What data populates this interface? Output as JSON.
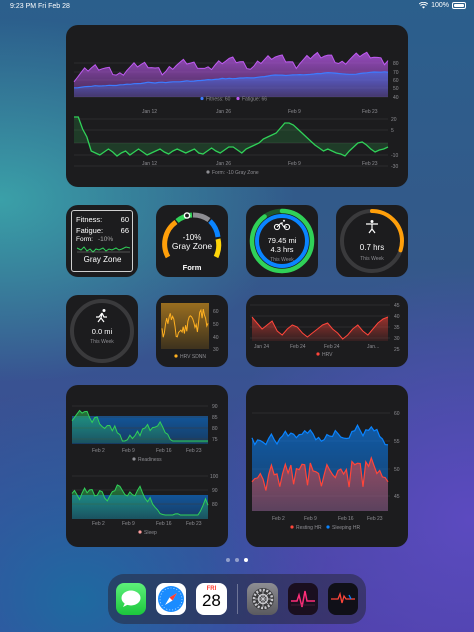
{
  "status": {
    "time": "9:23 PM",
    "date": "Fri Feb 28",
    "battery": "100%"
  },
  "colors": {
    "fitness": "#3d7bff",
    "fatigue": "#bf5af2",
    "form_green": "#30d158",
    "form_orange": "#ff9f0a",
    "hrv_red": "#ff453a",
    "hrv_yellow": "#ffb020",
    "blue": "#0a84ff"
  },
  "top_chart": {
    "fitness_fatigue": {
      "x_ticks": [
        "Jan 12",
        "Jan 26",
        "Feb 9",
        "Feb 23"
      ],
      "y_ticks": [
        "80",
        "70",
        "60",
        "50",
        "40"
      ],
      "legend": [
        {
          "label": "Fitness: 60",
          "color": "#3d7bff"
        },
        {
          "label": "Fatigue: 66",
          "color": "#bf5af2"
        }
      ]
    },
    "form": {
      "x_ticks": [
        "Jan 12",
        "Jan 26",
        "Feb 9",
        "Feb 23"
      ],
      "y_ticks": [
        "20",
        "5",
        "-10",
        "-30"
      ],
      "legend": [
        {
          "label": "Form: -10 Gray Zone",
          "color": "#8e8e93"
        }
      ]
    }
  },
  "summary": {
    "fitness_label": "Fitness:",
    "fitness_value": "60",
    "fatigue_label": "Fatigue:",
    "fatigue_value": "66",
    "form_label": "Form:",
    "form_value": "-10%",
    "zone": "Gray Zone"
  },
  "form_gauge": {
    "value": "-10%",
    "zone": "Gray Zone",
    "title": "Form"
  },
  "cycling": {
    "distance": "79.45 mi",
    "duration": "4.3 hrs",
    "period": "This Week",
    "ring_progress": 0.9
  },
  "activity": {
    "duration": "0.7 hrs",
    "period": "This Week",
    "ring_progress": 0.3
  },
  "running": {
    "distance": "0.0 mi",
    "period": "This Week",
    "ring_progress": 0
  },
  "hrv_sdnn": {
    "y_ticks": [
      "60",
      "50",
      "40",
      "30"
    ],
    "legend": "HRV SDNN"
  },
  "hrv": {
    "x_ticks": [
      "Jan 24",
      "Feb 24",
      "Feb 24",
      "Jan..."
    ],
    "y_ticks": [
      "45",
      "40",
      "35",
      "30",
      "25"
    ],
    "legend": "HRV"
  },
  "readiness": {
    "x_ticks": [
      "Feb 2",
      "Feb 9",
      "Feb 16",
      "Feb 23"
    ],
    "y_ticks": [
      "90",
      "85",
      "80",
      "75"
    ],
    "legend": "Readiness"
  },
  "sleep": {
    "x_ticks": [
      "Feb 2",
      "Feb 9",
      "Feb 16",
      "Feb 23"
    ],
    "y_ticks": [
      "100",
      "90",
      "80"
    ],
    "legend": "Sleep"
  },
  "heart_rate": {
    "x_ticks": [
      "Feb 2",
      "Feb 9",
      "Feb 16",
      "Feb 23"
    ],
    "y_ticks": [
      "60",
      "55",
      "50",
      "45"
    ],
    "legend": [
      {
        "label": "Resting HR",
        "color": "#ff453a"
      },
      {
        "label": "Sleeping HR",
        "color": "#0a84ff"
      }
    ]
  },
  "dock": {
    "calendar_day": "FRI",
    "calendar_date": "28",
    "apps": [
      "messages-icon",
      "safari-icon",
      "calendar-icon",
      "settings-icon",
      "heart-rate-app-icon",
      "ecg-app-icon"
    ]
  }
}
